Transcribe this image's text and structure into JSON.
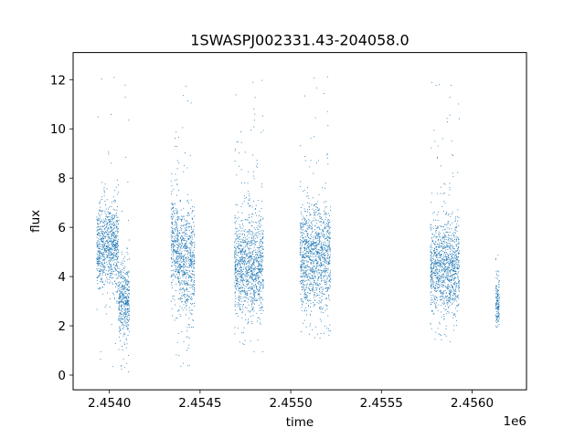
{
  "chart_data": {
    "type": "scatter",
    "title": "1SWASPJ002331.43-204058.0",
    "xlabel": "time",
    "ylabel": "flux",
    "x_offset_label": "1e6",
    "xlim": [
      2453750,
      2456250
    ],
    "ylim": [
      -0.6,
      13.1
    ],
    "x_ticks": [
      2453950,
      2454450,
      2454950,
      2455450,
      2455950,
      2456450
    ],
    "x_tick_labels": [
      "2.4540",
      "2.4545",
      "2.4550",
      "2.4555",
      "2.4560",
      ""
    ],
    "y_ticks": [
      0,
      2,
      4,
      6,
      8,
      10,
      12
    ],
    "y_tick_labels": [
      "0",
      "2",
      "4",
      "6",
      "8",
      "10",
      "12"
    ],
    "grid": false,
    "marker_color": "#1f77b4",
    "series": [
      {
        "clusters": [
          {
            "x_range": [
              2453880,
              2454000
            ],
            "y_center": 5.2,
            "y_spread": 0.8,
            "y_min": 0.2,
            "y_max": 12.4
          },
          {
            "x_range": [
              2454000,
              2454060
            ],
            "y_center": 3.0,
            "y_spread": 0.7,
            "y_min": 0.0,
            "y_max": 12.4
          },
          {
            "x_range": [
              2454290,
              2454330
            ],
            "y_center": 5.3,
            "y_spread": 0.9,
            "y_min": 0.1,
            "y_max": 10.3
          },
          {
            "x_range": [
              2454330,
              2454420
            ],
            "y_center": 4.6,
            "y_spread": 1.0,
            "y_min": 0.2,
            "y_max": 12.1
          },
          {
            "x_range": [
              2454640,
              2454800
            ],
            "y_center": 4.5,
            "y_spread": 1.0,
            "y_min": 0.9,
            "y_max": 12.0
          },
          {
            "x_range": [
              2455000,
              2455170
            ],
            "y_center": 4.8,
            "y_spread": 1.0,
            "y_min": 1.5,
            "y_max": 12.4
          },
          {
            "x_range": [
              2455720,
              2455880
            ],
            "y_center": 4.4,
            "y_spread": 0.9,
            "y_min": 1.3,
            "y_max": 12.5
          },
          {
            "x_range": [
              2456080,
              2456100
            ],
            "y_center": 2.9,
            "y_spread": 0.5,
            "y_min": 1.9,
            "y_max": 4.9
          }
        ]
      }
    ]
  }
}
